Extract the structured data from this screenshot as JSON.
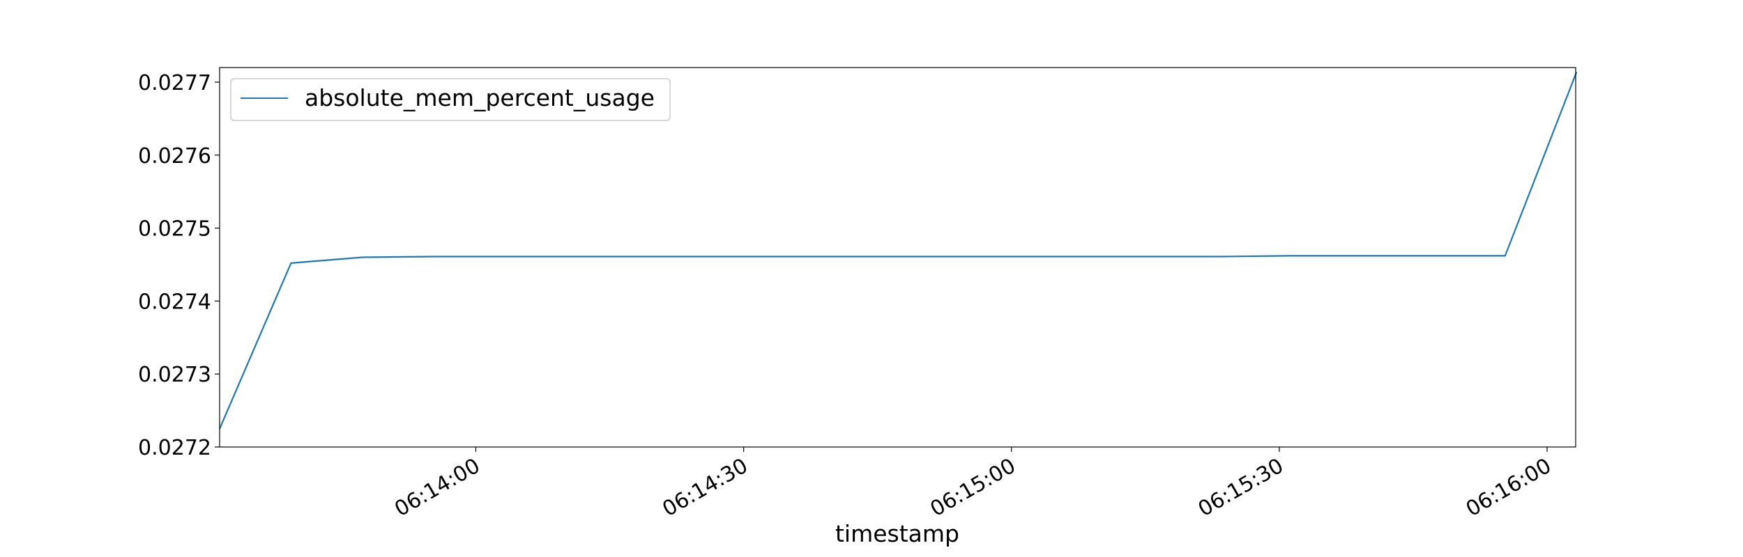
{
  "chart_data": {
    "type": "line",
    "title": "",
    "xlabel": "timestamp",
    "ylabel": "",
    "x_tick_labels": [
      "06:14:00",
      "06:14:30",
      "06:15:00",
      "06:15:30",
      "06:16:00"
    ],
    "x_tick_seconds": [
      840,
      870,
      900,
      930,
      960
    ],
    "xlim_seconds": [
      811.3,
      963.2
    ],
    "ylim": [
      0.0272,
      0.02772
    ],
    "y_ticks": [
      0.0272,
      0.0273,
      0.0274,
      0.0275,
      0.0276,
      0.0277
    ],
    "y_tick_labels": [
      "0.0272",
      "0.0273",
      "0.0274",
      "0.0275",
      "0.0276",
      "0.0277"
    ],
    "grid": false,
    "legend_position": "upper-left",
    "series": [
      {
        "name": "absolute_mem_percent_usage",
        "color": "#1f77b4",
        "x_seconds": [
          811.3,
          819.3,
          827.3,
          835.3,
          843.3,
          851.3,
          859.3,
          867.3,
          875.3,
          883.3,
          891.3,
          899.3,
          907.3,
          915.3,
          923.3,
          931.3,
          939.3,
          947.3,
          955.3,
          963.3
        ],
        "y": [
          0.027225,
          0.027452,
          0.02746,
          0.027461,
          0.027461,
          0.027461,
          0.027461,
          0.027461,
          0.027461,
          0.027461,
          0.027461,
          0.027461,
          0.027461,
          0.027461,
          0.027461,
          0.027462,
          0.027462,
          0.027462,
          0.027462,
          0.027714
        ]
      }
    ]
  }
}
